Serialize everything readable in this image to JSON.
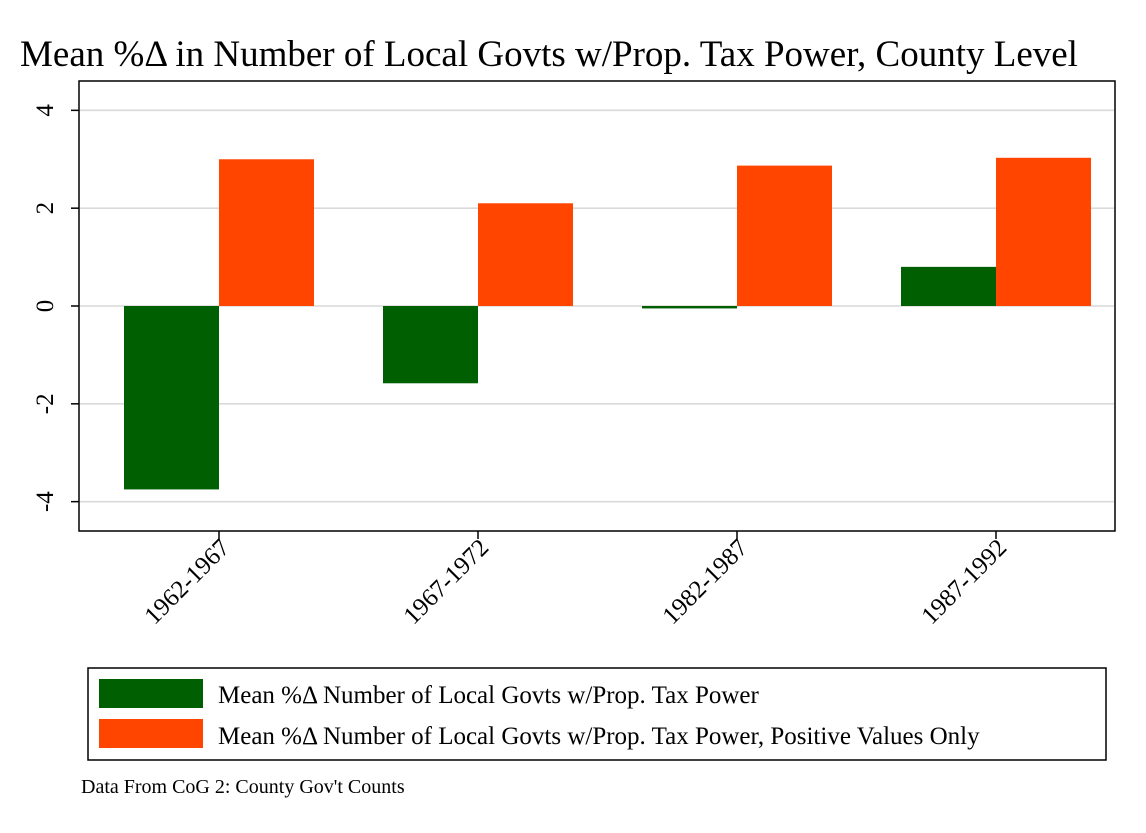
{
  "chart_data": {
    "type": "bar",
    "title": "Mean %Δ in Number of Local Govts w/Prop. Tax Power, County Level",
    "categories": [
      "1962-1967",
      "1967-1972",
      "1982-1987",
      "1987-1992"
    ],
    "series": [
      {
        "name": "Mean %Δ Number of Local Govts w/Prop. Tax Power",
        "color": "#005f00",
        "values": [
          -3.75,
          -1.58,
          -0.05,
          0.8
        ]
      },
      {
        "name": "Mean %Δ Number of Local Govts w/Prop. Tax Power, Positive Values Only",
        "color": "#ff4500",
        "values": [
          3.0,
          2.1,
          2.87,
          3.03
        ]
      }
    ],
    "yticks": [
      "-4",
      "-2",
      "0",
      "2",
      "4"
    ],
    "ylim": [
      -4.6,
      4.6
    ],
    "grid": true,
    "legend_position": "bottom",
    "note": "Data From CoG 2: County Gov't Counts"
  }
}
